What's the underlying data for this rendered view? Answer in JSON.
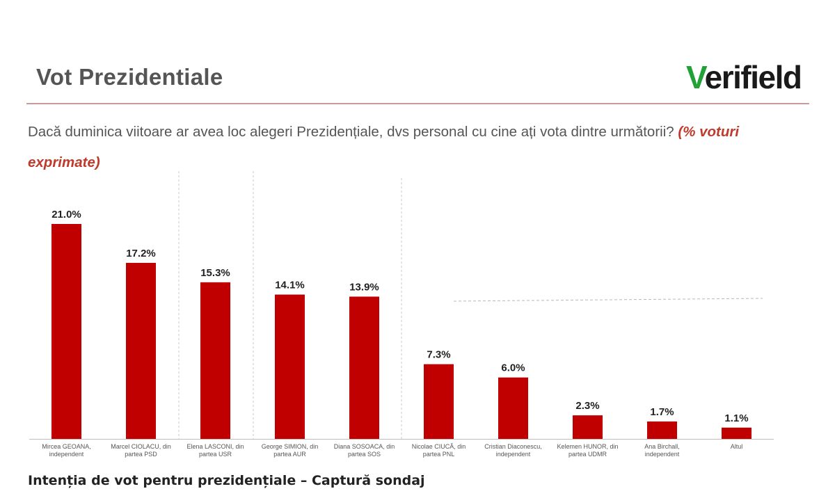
{
  "slide": {
    "title": "Vot Prezidentiale",
    "logo_mark": "V",
    "logo_rest": "erifield",
    "question": "Dacă duminica viitoare ar avea loc alegeri Prezidențiale, dvs personal cu cine ați vota dintre următorii?",
    "question_note": "(% voturi exprimate)"
  },
  "caption": "Intenția de vot pentru prezidențiale – Captură sondaj",
  "colors": {
    "bar": "#c00000",
    "logo_accent": "#21a136",
    "note": "#c0392b",
    "rule": "#c89b9b"
  },
  "chart_data": {
    "type": "bar",
    "categories": [
      [
        "Mircea GEOANA,",
        "independent"
      ],
      [
        "Marcel CIOLACU, din",
        "partea PSD"
      ],
      [
        "Elena LASCONI, din",
        "partea USR"
      ],
      [
        "George SIMION, din",
        "partea AUR"
      ],
      [
        "Diana SOSOACA, din",
        "partea SOS"
      ],
      [
        "Nicolae CIUCĂ, din",
        "partea PNL"
      ],
      [
        "Cristian Diaconescu,",
        "independent"
      ],
      [
        "Kelemen HUNOR, din",
        "partea UDMR"
      ],
      [
        "Ana Birchall,",
        "independent"
      ],
      [
        "Altul"
      ]
    ],
    "values": [
      21.0,
      17.2,
      15.3,
      14.1,
      13.9,
      7.3,
      6.0,
      2.3,
      1.7,
      1.1
    ],
    "value_labels": [
      "21.0%",
      "17.2%",
      "15.3%",
      "14.1%",
      "13.9%",
      "7.3%",
      "6.0%",
      "2.3%",
      "1.7%",
      "1.1%"
    ],
    "ylim": [
      0,
      21.0
    ],
    "grid": false,
    "legend": "none"
  }
}
